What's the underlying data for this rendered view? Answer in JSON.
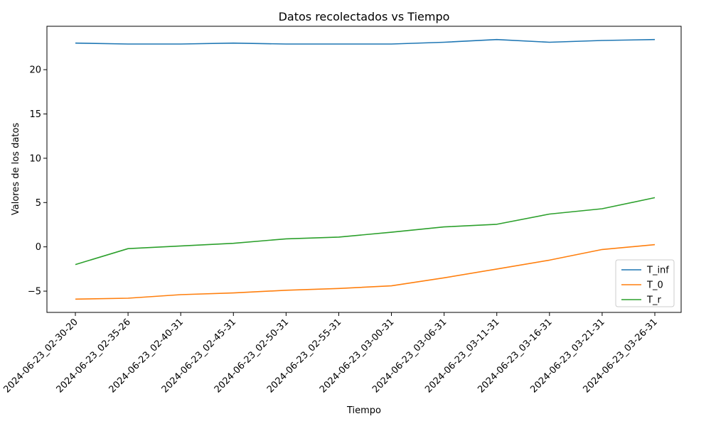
{
  "chart_data": {
    "type": "line",
    "title": "Datos recolectados vs Tiempo",
    "xlabel": "Tiempo",
    "ylabel": "Valores de los datos",
    "categories": [
      "2024-06-23_02-30-20",
      "2024-06-23_02-35-26",
      "2024-06-23_02-40-31",
      "2024-06-23_02-45-31",
      "2024-06-23_02-50-31",
      "2024-06-23_02-55-31",
      "2024-06-23_03-00-31",
      "2024-06-23_03-06-31",
      "2024-06-23_03-11-31",
      "2024-06-23_03-16-31",
      "2024-06-23_03-21-31",
      "2024-06-23_03-26-31"
    ],
    "yticks": [
      -5,
      0,
      5,
      10,
      15,
      20
    ],
    "ylim": [
      -7.4,
      24.9
    ],
    "grid": false,
    "legend_position": "lower-right",
    "series": [
      {
        "name": "T_inf",
        "color": "#1f77b4",
        "values": [
          23.0,
          22.9,
          22.9,
          23.0,
          22.9,
          22.9,
          22.9,
          23.1,
          23.4,
          23.1,
          23.3,
          23.4
        ]
      },
      {
        "name": "T_0",
        "color": "#ff7f0e",
        "values": [
          -5.9,
          -5.8,
          -5.4,
          -5.2,
          -4.9,
          -4.7,
          -4.4,
          -3.5,
          -2.5,
          -1.5,
          -0.3,
          0.25
        ]
      },
      {
        "name": "T_r",
        "color": "#2ca02c",
        "values": [
          -2.0,
          -0.2,
          0.1,
          0.4,
          0.9,
          1.1,
          1.65,
          2.25,
          2.55,
          3.7,
          4.3,
          5.55
        ]
      }
    ]
  }
}
